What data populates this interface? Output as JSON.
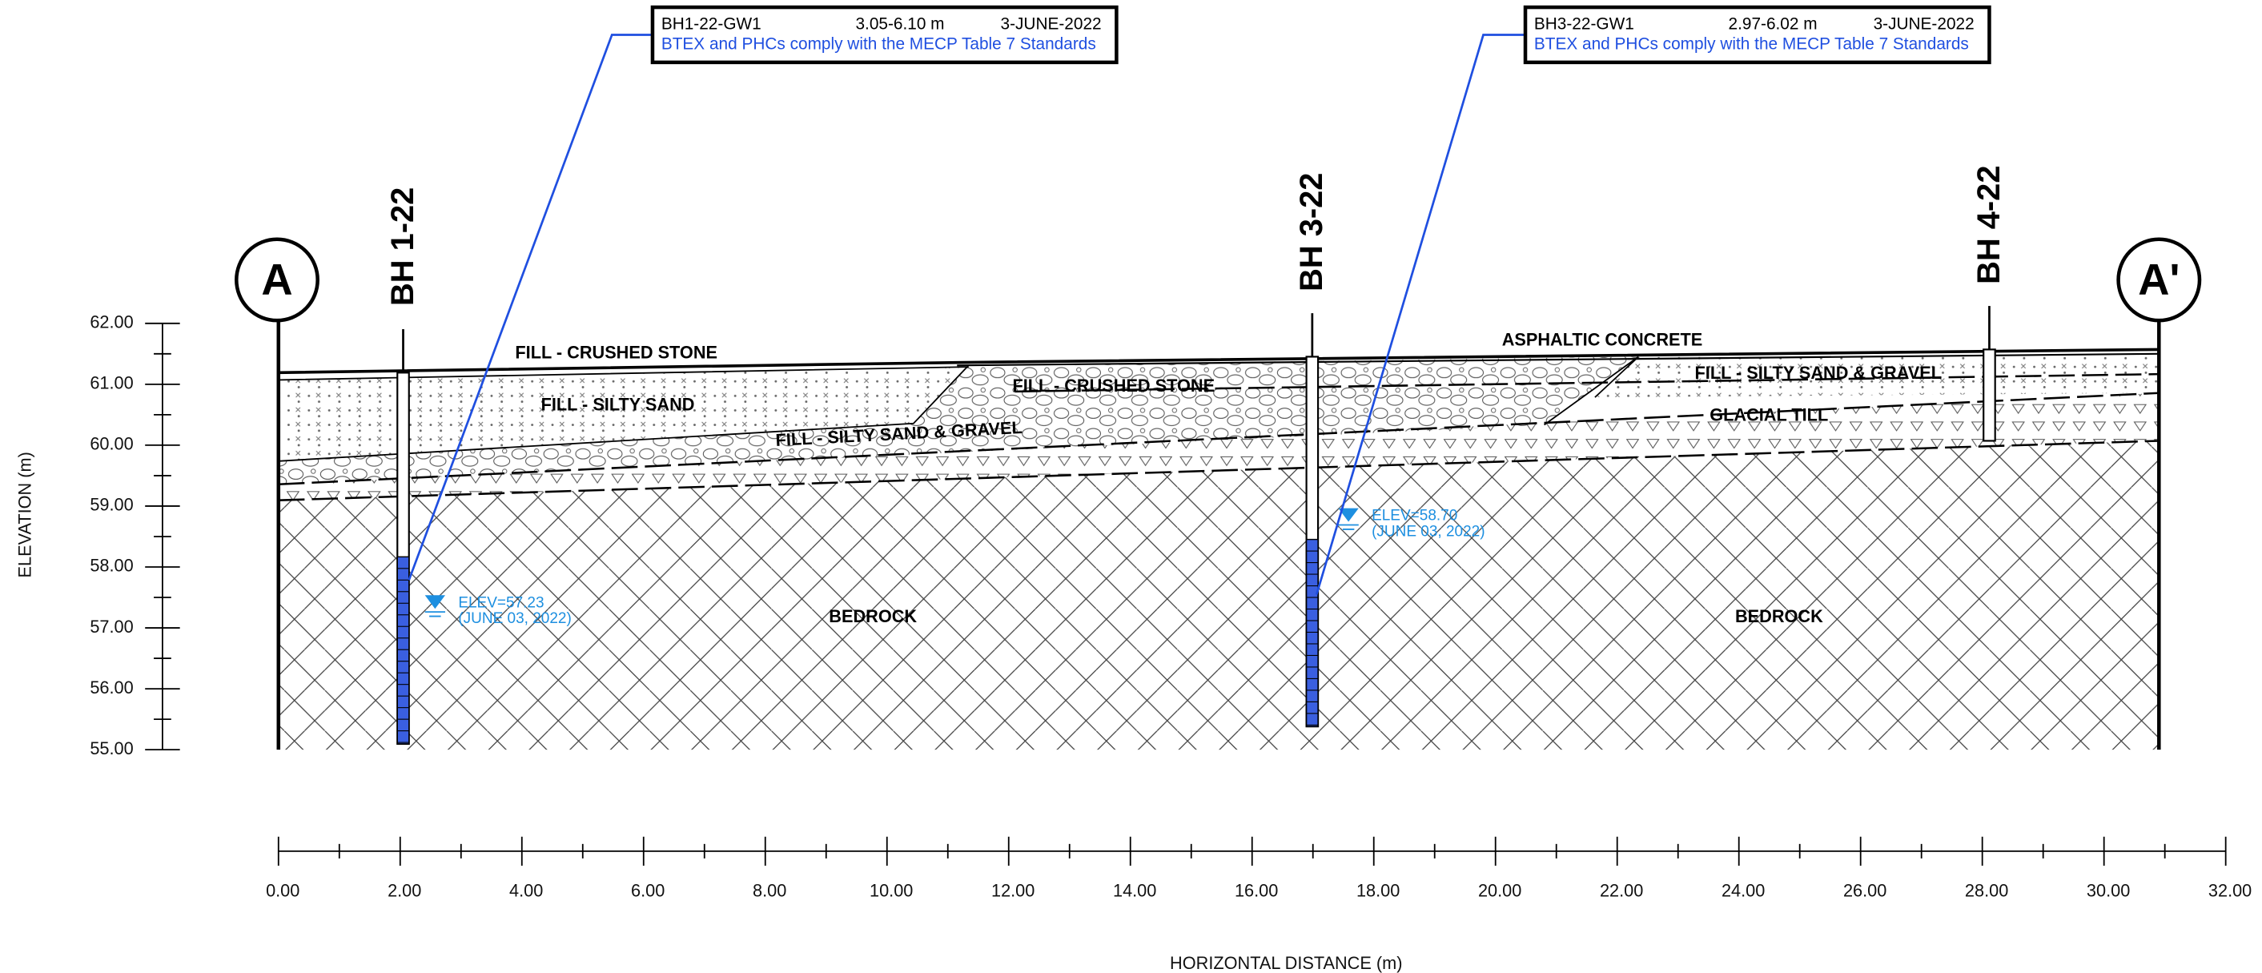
{
  "section": {
    "start_label": "A",
    "end_label": "A'"
  },
  "axes": {
    "y_label": "ELEVATION (m)",
    "y_ticks": [
      "62.00",
      "61.00",
      "60.00",
      "59.00",
      "58.00",
      "57.00",
      "56.00",
      "55.00"
    ],
    "x_label": "HORIZONTAL DISTANCE (m)",
    "x_ticks": [
      "0.00",
      "2.00",
      "4.00",
      "6.00",
      "8.00",
      "10.00",
      "12.00",
      "14.00",
      "16.00",
      "18.00",
      "20.00",
      "22.00",
      "24.00",
      "26.00",
      "28.00",
      "30.00",
      "32.00"
    ]
  },
  "layers": [
    "FILL - CRUSHED STONE",
    "FILL - SILTY SAND",
    "FILL - SILTY SAND & GRAVEL",
    "FILL - CRUSHED STONE",
    "ASPHALTIC CONCRETE",
    "FILL - SILTY SAND & GRAVEL",
    "GLACIAL TILL",
    "BEDROCK",
    "BEDROCK"
  ],
  "boreholes": [
    {
      "label": "BH 1-22",
      "water_level": {
        "elev": "ELEV=57.23",
        "date": "(JUNE 03, 2022)"
      }
    },
    {
      "label": "BH 3-22",
      "water_level": {
        "elev": "ELEV=58.70",
        "date": "(JUNE 03, 2022)"
      }
    },
    {
      "label": "BH 4-22"
    }
  ],
  "callouts": [
    {
      "sample": "BH1-22-GW1",
      "depth": "3.05-6.10 m",
      "date": "3-JUNE-2022",
      "result": "BTEX and PHCs comply with the MECP Table 7 Standards"
    },
    {
      "sample": "BH3-22-GW1",
      "depth": "2.97-6.02 m",
      "date": "3-JUNE-2022",
      "result": "BTEX and PHCs comply with the MECP Table 7 Standards"
    }
  ]
}
